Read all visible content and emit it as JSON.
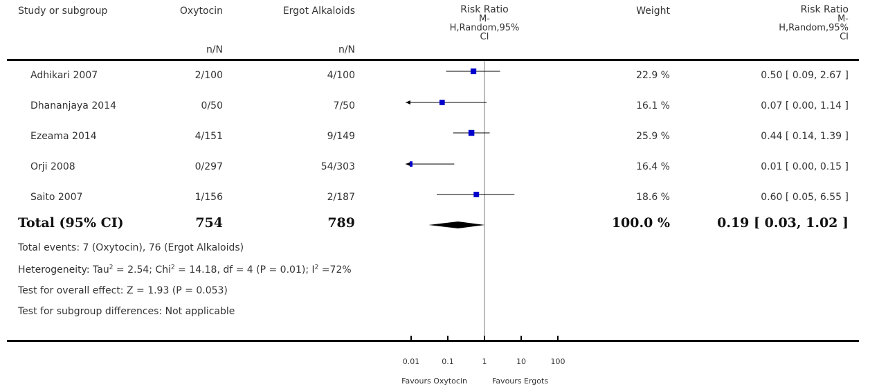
{
  "header": {
    "study_col": "Study or subgroup",
    "oxy_col": "Oxytocin",
    "oxy_sub": "n/N",
    "ergot_col": "Ergot Alkaloids",
    "ergot_sub": "n/N",
    "rr_col_lines": [
      "Risk Ratio",
      "M-",
      "H,Random,95%",
      "CI"
    ],
    "weight_col": "Weight",
    "rr2_col_lines": [
      "Risk Ratio",
      "M-",
      "H,Random,95%",
      "CI"
    ]
  },
  "studies": [
    {
      "name": "Adhikari 2007",
      "oxy": "2/100",
      "ergot": "4/100",
      "weight": "22.9 %",
      "ci_text": "0.50 [ 0.09, 2.67 ]"
    },
    {
      "name": "Dhananjaya 2014",
      "oxy": "0/50",
      "ergot": "7/50",
      "weight": "16.1 %",
      "ci_text": "0.07 [ 0.00, 1.14 ]"
    },
    {
      "name": "Ezeama 2014",
      "oxy": "4/151",
      "ergot": "9/149",
      "weight": "25.9 %",
      "ci_text": "0.44 [ 0.14, 1.39 ]"
    },
    {
      "name": "Orji 2008",
      "oxy": "0/297",
      "ergot": "54/303",
      "weight": "16.4 %",
      "ci_text": "0.01 [ 0.00, 0.15 ]"
    },
    {
      "name": "Saito 2007",
      "oxy": "1/156",
      "ergot": "2/187",
      "weight": "18.6 %",
      "ci_text": "0.60 [ 0.05, 6.55 ]"
    }
  ],
  "total": {
    "label": "Total (95% CI)",
    "oxy": "754",
    "ergot": "789",
    "weight": "100.0 %",
    "ci_text": "0.19 [ 0.03, 1.02 ]"
  },
  "footnotes": {
    "events": "Total events: 7 (Oxytocin), 76 (Ergot Alkaloids)",
    "heterogeneity_parts": [
      "Heterogeneity: Tau",
      "2",
      " = 2.54; Chi",
      "2",
      " = 14.18, df = 4 (P = 0.01); I",
      "2",
      " =72%"
    ],
    "overall": "Test for overall effect: Z = 1.93 (P = 0.053)",
    "subgroup": "Test for subgroup differences: Not applicable"
  },
  "axis": {
    "ticks": [
      "0.01",
      "0.1",
      "1",
      "10",
      "100"
    ],
    "favours_left": "Favours Oxytocin",
    "favours_right": "Favours Ergots"
  },
  "chart_data": {
    "type": "forest",
    "scale": "log",
    "xlim": [
      0.01,
      100
    ],
    "null_line": 1,
    "tick_values": [
      0.01,
      0.1,
      1,
      10,
      100
    ],
    "tick_labels": [
      "0.01",
      "0.1",
      "1",
      "10",
      "100"
    ],
    "xlabel_left": "Favours Oxytocin",
    "xlabel_right": "Favours Ergots",
    "studies": [
      {
        "name": "Adhikari 2007",
        "rr": 0.5,
        "lower": 0.09,
        "upper": 2.67,
        "weight": 22.9
      },
      {
        "name": "Dhananjaya 2014",
        "rr": 0.07,
        "lower": 0.0,
        "upper": 1.14,
        "weight": 16.1
      },
      {
        "name": "Ezeama 2014",
        "rr": 0.44,
        "lower": 0.14,
        "upper": 1.39,
        "weight": 25.9
      },
      {
        "name": "Orji 2008",
        "rr": 0.01,
        "lower": 0.0,
        "upper": 0.15,
        "weight": 16.4
      },
      {
        "name": "Saito 2007",
        "rr": 0.6,
        "lower": 0.05,
        "upper": 6.55,
        "weight": 18.6
      }
    ],
    "pooled": {
      "name": "Total (95% CI)",
      "rr": 0.19,
      "lower": 0.03,
      "upper": 1.02,
      "weight": 100.0
    },
    "colors": {
      "marker": "#0000cc",
      "diamond": "#000000",
      "null_line": "#999999"
    }
  }
}
